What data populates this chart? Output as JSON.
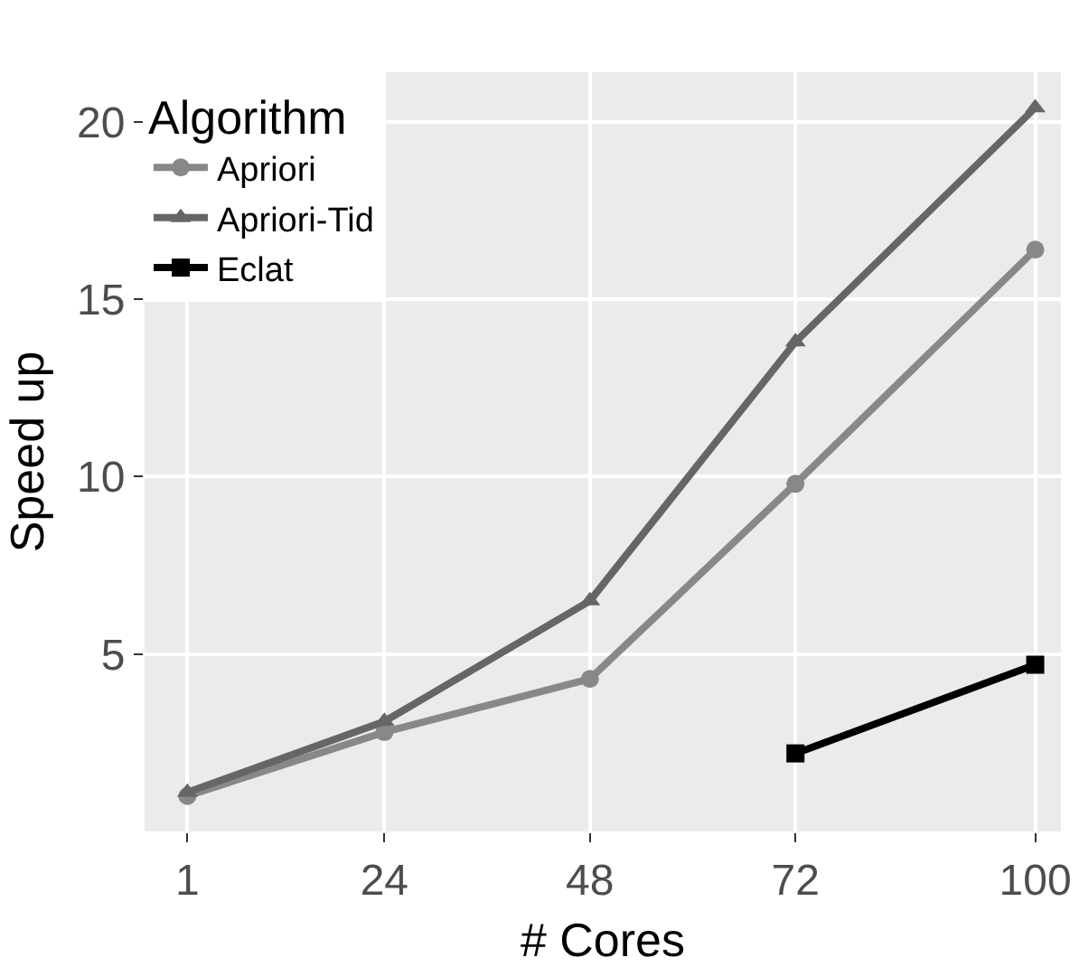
{
  "chart_data": {
    "type": "line",
    "xlabel": "# Cores",
    "ylabel": "Speed up",
    "legend_title": "Algorithm",
    "xlim": [
      -4,
      103
    ],
    "xticks": [
      1,
      24,
      48,
      72,
      100
    ],
    "ylim": [
      0,
      21.4
    ],
    "yticks": [
      5,
      10,
      15,
      20
    ],
    "grid": true,
    "legend": "top left",
    "line_style": "solid",
    "series": [
      {
        "name": "Apriori",
        "color": "#888888",
        "marker": "circle",
        "x": [
          1,
          24,
          48,
          72,
          100
        ],
        "values": [
          1.0,
          2.8,
          4.3,
          9.8,
          16.4
        ]
      },
      {
        "name": "Apriori-Tid",
        "color": "#666666",
        "marker": "triangle",
        "x": [
          1,
          24,
          48,
          72,
          100
        ],
        "values": [
          1.1,
          3.1,
          6.5,
          13.8,
          20.4
        ]
      },
      {
        "name": "Eclat",
        "color": "#000000",
        "marker": "square",
        "x": [
          72,
          100
        ],
        "values": [
          2.2,
          4.7
        ]
      }
    ]
  }
}
